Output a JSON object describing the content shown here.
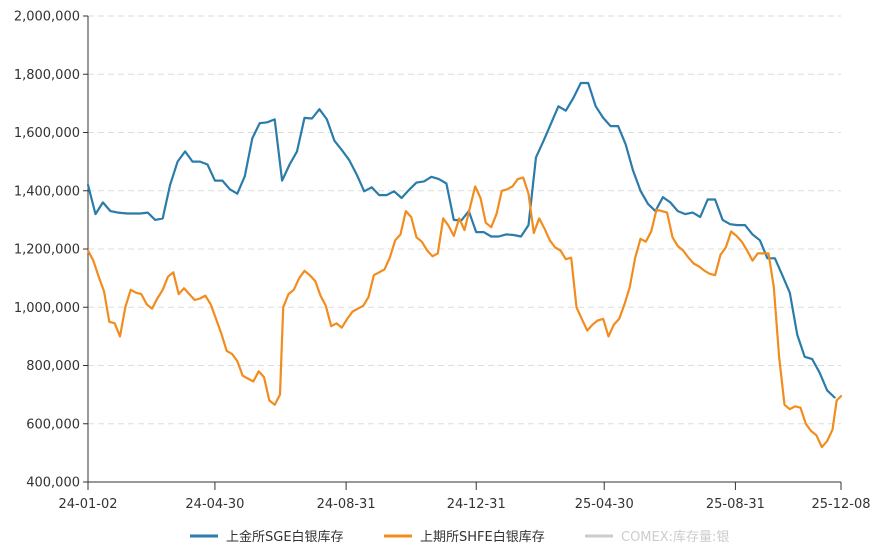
{
  "chart_data": {
    "type": "line",
    "title": "",
    "xlabel": "",
    "ylabel": "",
    "ylim": [
      400000,
      2000000
    ],
    "y_ticks": [
      400000,
      600000,
      800000,
      1000000,
      1200000,
      1400000,
      1600000,
      1800000,
      2000000
    ],
    "y_tick_labels": [
      "400,000",
      "600,000",
      "800,000",
      "1,000,000",
      "1,200,000",
      "1,400,000",
      "1,600,000",
      "1,800,000",
      "2,000,000"
    ],
    "x_range": [
      "2024-01-02",
      "2025-12-08"
    ],
    "x_ticks": [
      "2024-01-02",
      "2024-04-30",
      "2024-08-31",
      "2024-12-31",
      "2025-04-30",
      "2025-08-31",
      "2025-12-08"
    ],
    "x_tick_labels": [
      "24-01-02",
      "24-04-30",
      "24-08-31",
      "24-12-31",
      "25-04-30",
      "25-08-31",
      "25-12-08"
    ],
    "grid": true,
    "legend_position": "bottom",
    "series": [
      {
        "name": "上金所SGE白银库存",
        "color": "#2b7bab",
        "points": [
          [
            "2024-01-02",
            1420000
          ],
          [
            "2024-01-09",
            1320000
          ],
          [
            "2024-01-16",
            1360000
          ],
          [
            "2024-01-23",
            1330000
          ],
          [
            "2024-01-30",
            1325000
          ],
          [
            "2024-02-08",
            1322000
          ],
          [
            "2024-02-20",
            1322000
          ],
          [
            "2024-02-27",
            1325000
          ],
          [
            "2024-03-05",
            1300000
          ],
          [
            "2024-03-12",
            1305000
          ],
          [
            "2024-03-19",
            1420000
          ],
          [
            "2024-03-26",
            1500000
          ],
          [
            "2024-04-02",
            1535000
          ],
          [
            "2024-04-09",
            1500000
          ],
          [
            "2024-04-16",
            1500000
          ],
          [
            "2024-04-23",
            1490000
          ],
          [
            "2024-04-30",
            1435000
          ],
          [
            "2024-05-07",
            1435000
          ],
          [
            "2024-05-14",
            1405000
          ],
          [
            "2024-05-21",
            1390000
          ],
          [
            "2024-05-28",
            1450000
          ],
          [
            "2024-06-04",
            1580000
          ],
          [
            "2024-06-11",
            1632000
          ],
          [
            "2024-06-18",
            1635000
          ],
          [
            "2024-06-25",
            1645000
          ],
          [
            "2024-07-02",
            1435000
          ],
          [
            "2024-07-09",
            1490000
          ],
          [
            "2024-07-16",
            1535000
          ],
          [
            "2024-07-23",
            1650000
          ],
          [
            "2024-07-30",
            1648000
          ],
          [
            "2024-08-06",
            1680000
          ],
          [
            "2024-08-13",
            1645000
          ],
          [
            "2024-08-20",
            1572000
          ],
          [
            "2024-08-27",
            1540000
          ],
          [
            "2024-09-03",
            1505000
          ],
          [
            "2024-09-10",
            1455000
          ],
          [
            "2024-09-17",
            1398000
          ],
          [
            "2024-09-24",
            1412000
          ],
          [
            "2024-10-01",
            1385000
          ],
          [
            "2024-10-08",
            1385000
          ],
          [
            "2024-10-15",
            1398000
          ],
          [
            "2024-10-22",
            1375000
          ],
          [
            "2024-10-29",
            1403000
          ],
          [
            "2024-11-05",
            1428000
          ],
          [
            "2024-11-12",
            1432000
          ],
          [
            "2024-11-19",
            1448000
          ],
          [
            "2024-11-26",
            1440000
          ],
          [
            "2024-12-03",
            1425000
          ],
          [
            "2024-12-10",
            1300000
          ],
          [
            "2024-12-17",
            1298000
          ],
          [
            "2024-12-24",
            1330000
          ],
          [
            "2024-12-31",
            1258000
          ],
          [
            "2025-01-07",
            1258000
          ],
          [
            "2025-01-14",
            1243000
          ],
          [
            "2025-01-21",
            1243000
          ],
          [
            "2025-01-28",
            1250000
          ],
          [
            "2025-02-04",
            1248000
          ],
          [
            "2025-02-11",
            1243000
          ],
          [
            "2025-02-18",
            1282000
          ],
          [
            "2025-02-25",
            1515000
          ],
          [
            "2025-03-04",
            1570000
          ],
          [
            "2025-03-11",
            1630000
          ],
          [
            "2025-03-18",
            1690000
          ],
          [
            "2025-03-25",
            1675000
          ],
          [
            "2025-04-01",
            1718000
          ],
          [
            "2025-04-08",
            1770000
          ],
          [
            "2025-04-15",
            1770000
          ],
          [
            "2025-04-22",
            1690000
          ],
          [
            "2025-04-29",
            1650000
          ],
          [
            "2025-05-06",
            1622000
          ],
          [
            "2025-05-13",
            1622000
          ],
          [
            "2025-05-20",
            1560000
          ],
          [
            "2025-05-27",
            1470000
          ],
          [
            "2025-06-03",
            1400000
          ],
          [
            "2025-06-10",
            1355000
          ],
          [
            "2025-06-17",
            1330000
          ],
          [
            "2025-06-24",
            1378000
          ],
          [
            "2025-07-01",
            1360000
          ],
          [
            "2025-07-08",
            1330000
          ],
          [
            "2025-07-15",
            1320000
          ],
          [
            "2025-07-22",
            1325000
          ],
          [
            "2025-07-29",
            1310000
          ],
          [
            "2025-08-05",
            1370000
          ],
          [
            "2025-08-12",
            1370000
          ],
          [
            "2025-08-19",
            1300000
          ],
          [
            "2025-08-26",
            1285000
          ],
          [
            "2025-09-02",
            1282000
          ],
          [
            "2025-09-09",
            1282000
          ],
          [
            "2025-09-16",
            1250000
          ],
          [
            "2025-09-23",
            1230000
          ],
          [
            "2025-09-30",
            1168000
          ],
          [
            "2025-10-07",
            1168000
          ],
          [
            "2025-10-14",
            1110000
          ],
          [
            "2025-10-21",
            1050000
          ],
          [
            "2025-10-28",
            905000
          ],
          [
            "2025-11-04",
            830000
          ],
          [
            "2025-11-11",
            822000
          ],
          [
            "2025-11-18",
            775000
          ],
          [
            "2025-11-25",
            715000
          ],
          [
            "2025-12-02",
            690000
          ]
        ]
      },
      {
        "name": "上期所SHFE白银库存",
        "color": "#f28c1e",
        "points": [
          [
            "2024-01-02",
            1195000
          ],
          [
            "2024-01-07",
            1160000
          ],
          [
            "2024-01-12",
            1105000
          ],
          [
            "2024-01-17",
            1055000
          ],
          [
            "2024-01-22",
            950000
          ],
          [
            "2024-01-27",
            945000
          ],
          [
            "2024-02-01",
            900000
          ],
          [
            "2024-02-06",
            1000000
          ],
          [
            "2024-02-11",
            1060000
          ],
          [
            "2024-02-16",
            1050000
          ],
          [
            "2024-02-21",
            1045000
          ],
          [
            "2024-02-26",
            1010000
          ],
          [
            "2024-03-02",
            995000
          ],
          [
            "2024-03-07",
            1030000
          ],
          [
            "2024-03-12",
            1060000
          ],
          [
            "2024-03-17",
            1105000
          ],
          [
            "2024-03-22",
            1120000
          ],
          [
            "2024-03-27",
            1045000
          ],
          [
            "2024-04-01",
            1065000
          ],
          [
            "2024-04-06",
            1045000
          ],
          [
            "2024-04-11",
            1025000
          ],
          [
            "2024-04-16",
            1030000
          ],
          [
            "2024-04-21",
            1040000
          ],
          [
            "2024-04-26",
            1010000
          ],
          [
            "2024-05-01",
            960000
          ],
          [
            "2024-05-06",
            910000
          ],
          [
            "2024-05-11",
            850000
          ],
          [
            "2024-05-16",
            840000
          ],
          [
            "2024-05-21",
            815000
          ],
          [
            "2024-05-26",
            765000
          ],
          [
            "2024-05-31",
            755000
          ],
          [
            "2024-06-05",
            745000
          ],
          [
            "2024-06-10",
            780000
          ],
          [
            "2024-06-15",
            760000
          ],
          [
            "2024-06-20",
            680000
          ],
          [
            "2024-06-25",
            665000
          ],
          [
            "2024-06-30",
            700000
          ],
          [
            "2024-07-03",
            1000000
          ],
          [
            "2024-07-08",
            1045000
          ],
          [
            "2024-07-13",
            1060000
          ],
          [
            "2024-07-18",
            1100000
          ],
          [
            "2024-07-23",
            1125000
          ],
          [
            "2024-07-28",
            1110000
          ],
          [
            "2024-08-02",
            1090000
          ],
          [
            "2024-08-07",
            1040000
          ],
          [
            "2024-08-12",
            1005000
          ],
          [
            "2024-08-17",
            935000
          ],
          [
            "2024-08-22",
            945000
          ],
          [
            "2024-08-27",
            930000
          ],
          [
            "2024-09-01",
            960000
          ],
          [
            "2024-09-06",
            985000
          ],
          [
            "2024-09-11",
            995000
          ],
          [
            "2024-09-16",
            1005000
          ],
          [
            "2024-09-21",
            1035000
          ],
          [
            "2024-09-26",
            1110000
          ],
          [
            "2024-10-01",
            1120000
          ],
          [
            "2024-10-06",
            1130000
          ],
          [
            "2024-10-11",
            1170000
          ],
          [
            "2024-10-16",
            1230000
          ],
          [
            "2024-10-21",
            1250000
          ],
          [
            "2024-10-26",
            1330000
          ],
          [
            "2024-10-31",
            1310000
          ],
          [
            "2024-11-05",
            1240000
          ],
          [
            "2024-11-10",
            1225000
          ],
          [
            "2024-11-15",
            1195000
          ],
          [
            "2024-11-20",
            1175000
          ],
          [
            "2024-11-25",
            1185000
          ],
          [
            "2024-11-30",
            1305000
          ],
          [
            "2024-12-05",
            1280000
          ],
          [
            "2024-12-10",
            1245000
          ],
          [
            "2024-12-15",
            1305000
          ],
          [
            "2024-12-20",
            1265000
          ],
          [
            "2024-12-25",
            1340000
          ],
          [
            "2024-12-30",
            1415000
          ],
          [
            "2025-01-04",
            1375000
          ],
          [
            "2025-01-09",
            1290000
          ],
          [
            "2025-01-14",
            1275000
          ],
          [
            "2025-01-19",
            1320000
          ],
          [
            "2025-01-24",
            1400000
          ],
          [
            "2025-01-29",
            1405000
          ],
          [
            "2025-02-03",
            1415000
          ],
          [
            "2025-02-08",
            1440000
          ],
          [
            "2025-02-13",
            1445000
          ],
          [
            "2025-02-18",
            1390000
          ],
          [
            "2025-02-23",
            1255000
          ],
          [
            "2025-02-28",
            1305000
          ],
          [
            "2025-03-05",
            1270000
          ],
          [
            "2025-03-10",
            1230000
          ],
          [
            "2025-03-15",
            1205000
          ],
          [
            "2025-03-20",
            1195000
          ],
          [
            "2025-03-25",
            1165000
          ],
          [
            "2025-03-30",
            1170000
          ],
          [
            "2025-04-04",
            1000000
          ],
          [
            "2025-04-09",
            960000
          ],
          [
            "2025-04-14",
            920000
          ],
          [
            "2025-04-19",
            940000
          ],
          [
            "2025-04-24",
            955000
          ],
          [
            "2025-04-29",
            960000
          ],
          [
            "2025-05-04",
            900000
          ],
          [
            "2025-05-09",
            940000
          ],
          [
            "2025-05-14",
            960000
          ],
          [
            "2025-05-19",
            1010000
          ],
          [
            "2025-05-24",
            1070000
          ],
          [
            "2025-05-29",
            1170000
          ],
          [
            "2025-06-03",
            1235000
          ],
          [
            "2025-06-08",
            1225000
          ],
          [
            "2025-06-13",
            1260000
          ],
          [
            "2025-06-18",
            1335000
          ],
          [
            "2025-06-23",
            1330000
          ],
          [
            "2025-06-28",
            1325000
          ],
          [
            "2025-07-03",
            1240000
          ],
          [
            "2025-07-08",
            1210000
          ],
          [
            "2025-07-13",
            1195000
          ],
          [
            "2025-07-18",
            1170000
          ],
          [
            "2025-07-23",
            1150000
          ],
          [
            "2025-07-28",
            1140000
          ],
          [
            "2025-08-02",
            1125000
          ],
          [
            "2025-08-07",
            1115000
          ],
          [
            "2025-08-12",
            1110000
          ],
          [
            "2025-08-17",
            1180000
          ],
          [
            "2025-08-22",
            1205000
          ],
          [
            "2025-08-27",
            1260000
          ],
          [
            "2025-09-01",
            1245000
          ],
          [
            "2025-09-06",
            1225000
          ],
          [
            "2025-09-11",
            1195000
          ],
          [
            "2025-09-16",
            1160000
          ],
          [
            "2025-09-21",
            1185000
          ],
          [
            "2025-09-26",
            1185000
          ],
          [
            "2025-10-01",
            1185000
          ],
          [
            "2025-10-06",
            1070000
          ],
          [
            "2025-10-11",
            830000
          ],
          [
            "2025-10-16",
            665000
          ],
          [
            "2025-10-21",
            650000
          ],
          [
            "2025-10-26",
            660000
          ],
          [
            "2025-10-31",
            655000
          ],
          [
            "2025-11-05",
            600000
          ],
          [
            "2025-11-10",
            575000
          ],
          [
            "2025-11-15",
            560000
          ],
          [
            "2025-11-20",
            520000
          ],
          [
            "2025-11-25",
            540000
          ],
          [
            "2025-11-30",
            580000
          ],
          [
            "2025-12-04",
            680000
          ],
          [
            "2025-12-08",
            695000
          ]
        ]
      },
      {
        "name": "COMEX:库存量:银",
        "color": "#cccccc",
        "points": []
      }
    ]
  }
}
